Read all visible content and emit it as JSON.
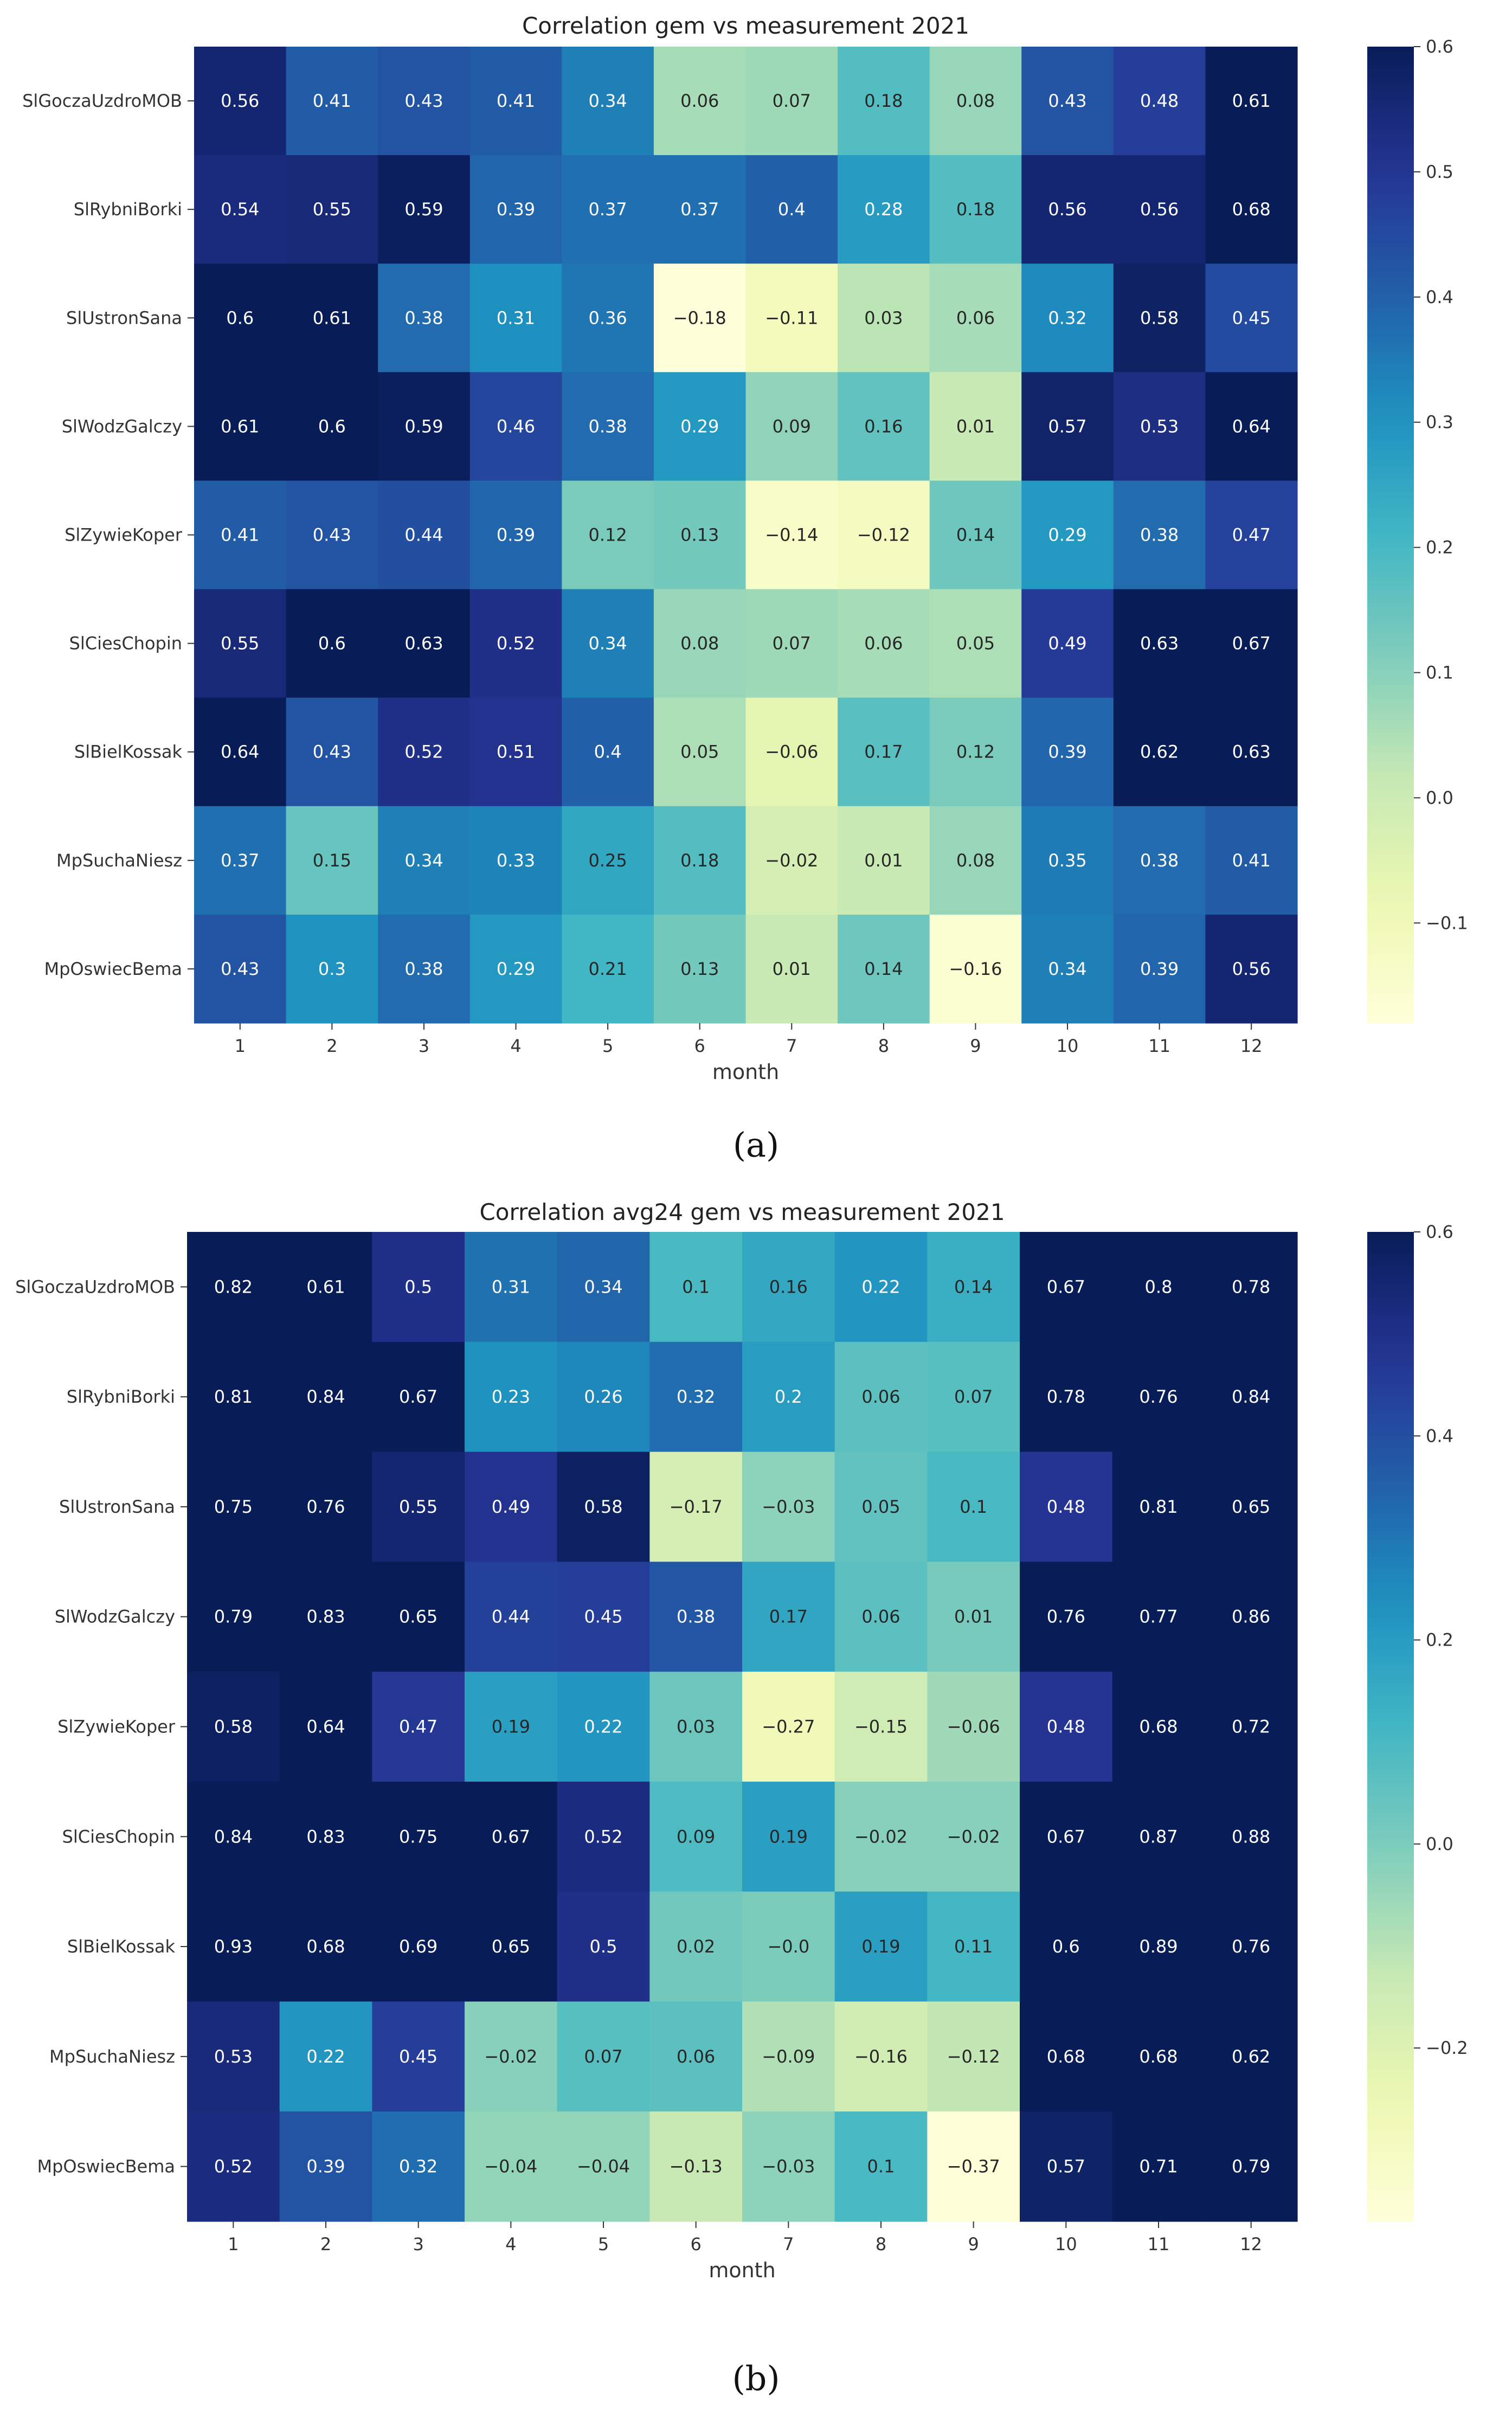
{
  "chart_data": [
    {
      "type": "heatmap",
      "title": "Correlation gem vs measurement 2021",
      "xlabel": "month",
      "ylabel": "",
      "x": [
        "1",
        "2",
        "3",
        "4",
        "5",
        "6",
        "7",
        "8",
        "9",
        "10",
        "11",
        "12"
      ],
      "y": [
        "SlGoczaUzdroMOB",
        "SlRybniBorki",
        "SlUstronSana",
        "SlWodzGalczy",
        "SlZywieKoper",
        "SlCiesChopin",
        "SlBielKossak",
        "MpSuchaNiesz",
        "MpOswiecBema"
      ],
      "cell_labels": [
        [
          "0.56",
          "0.41",
          "0.43",
          "0.41",
          "0.34",
          "0.06",
          "0.07",
          "0.18",
          "0.08",
          "0.43",
          "0.48",
          "0.61"
        ],
        [
          "0.54",
          "0.55",
          "0.59",
          "0.39",
          "0.37",
          "0.37",
          "0.4",
          "0.28",
          "0.18",
          "0.56",
          "0.56",
          "0.68"
        ],
        [
          "0.6",
          "0.61",
          "0.38",
          "0.31",
          "0.36",
          "−0.18",
          "−0.11",
          "0.03",
          "0.06",
          "0.32",
          "0.58",
          "0.45"
        ],
        [
          "0.61",
          "0.6",
          "0.59",
          "0.46",
          "0.38",
          "0.29",
          "0.09",
          "0.16",
          "0.01",
          "0.57",
          "0.53",
          "0.64"
        ],
        [
          "0.41",
          "0.43",
          "0.44",
          "0.39",
          "0.12",
          "0.13",
          "−0.14",
          "−0.12",
          "0.14",
          "0.29",
          "0.38",
          "0.47"
        ],
        [
          "0.55",
          "0.6",
          "0.63",
          "0.52",
          "0.34",
          "0.08",
          "0.07",
          "0.06",
          "0.05",
          "0.49",
          "0.63",
          "0.67"
        ],
        [
          "0.64",
          "0.43",
          "0.52",
          "0.51",
          "0.4",
          "0.05",
          "−0.06",
          "0.17",
          "0.12",
          "0.39",
          "0.62",
          "0.63"
        ],
        [
          "0.37",
          "0.15",
          "0.34",
          "0.33",
          "0.25",
          "0.18",
          "−0.02",
          "0.01",
          "0.08",
          "0.35",
          "0.38",
          "0.41"
        ],
        [
          "0.43",
          "0.3",
          "0.38",
          "0.29",
          "0.21",
          "0.13",
          "0.01",
          "0.14",
          "−0.16",
          "0.34",
          "0.39",
          "0.56"
        ]
      ],
      "values": [
        [
          0.56,
          0.41,
          0.43,
          0.41,
          0.34,
          0.06,
          0.07,
          0.18,
          0.08,
          0.43,
          0.48,
          0.61
        ],
        [
          0.54,
          0.55,
          0.59,
          0.39,
          0.37,
          0.37,
          0.4,
          0.28,
          0.18,
          0.56,
          0.56,
          0.68
        ],
        [
          0.6,
          0.61,
          0.38,
          0.31,
          0.36,
          -0.18,
          -0.11,
          0.03,
          0.06,
          0.32,
          0.58,
          0.45
        ],
        [
          0.61,
          0.6,
          0.59,
          0.46,
          0.38,
          0.29,
          0.09,
          0.16,
          0.01,
          0.57,
          0.53,
          0.64
        ],
        [
          0.41,
          0.43,
          0.44,
          0.39,
          0.12,
          0.13,
          -0.14,
          -0.12,
          0.14,
          0.29,
          0.38,
          0.47
        ],
        [
          0.55,
          0.6,
          0.63,
          0.52,
          0.34,
          0.08,
          0.07,
          0.06,
          0.05,
          0.49,
          0.63,
          0.67
        ],
        [
          0.64,
          0.43,
          0.52,
          0.51,
          0.4,
          0.05,
          -0.06,
          0.17,
          0.12,
          0.39,
          0.62,
          0.63
        ],
        [
          0.37,
          0.15,
          0.34,
          0.33,
          0.25,
          0.18,
          -0.02,
          0.01,
          0.08,
          0.35,
          0.38,
          0.41
        ],
        [
          0.43,
          0.3,
          0.38,
          0.29,
          0.21,
          0.13,
          0.01,
          0.14,
          -0.16,
          0.34,
          0.39,
          0.56
        ]
      ],
      "vmin": -0.18,
      "vmax": 0.6,
      "colorbar_ticks": [
        -0.1,
        0.0,
        0.1,
        0.2,
        0.3,
        0.4,
        0.5,
        0.6
      ],
      "colorbar_tick_labels": [
        "−0.1",
        "0.0",
        "0.1",
        "0.2",
        "0.3",
        "0.4",
        "0.5",
        "0.6"
      ],
      "colormap": "YlGnBu",
      "caption": "(a)"
    },
    {
      "type": "heatmap",
      "title": "Correlation avg24 gem vs measurement 2021",
      "xlabel": "month",
      "ylabel": "",
      "x": [
        "1",
        "2",
        "3",
        "4",
        "5",
        "6",
        "7",
        "8",
        "9",
        "10",
        "11",
        "12"
      ],
      "y": [
        "SlGoczaUzdroMOB",
        "SlRybniBorki",
        "SlUstronSana",
        "SlWodzGalczy",
        "SlZywieKoper",
        "SlCiesChopin",
        "SlBielKossak",
        "MpSuchaNiesz",
        "MpOswiecBema"
      ],
      "cell_labels": [
        [
          "0.82",
          "0.61",
          "0.5",
          "0.31",
          "0.34",
          "0.1",
          "0.16",
          "0.22",
          "0.14",
          "0.67",
          "0.8",
          "0.78"
        ],
        [
          "0.81",
          "0.84",
          "0.67",
          "0.23",
          "0.26",
          "0.32",
          "0.2",
          "0.06",
          "0.07",
          "0.78",
          "0.76",
          "0.84"
        ],
        [
          "0.75",
          "0.76",
          "0.55",
          "0.49",
          "0.58",
          "−0.17",
          "−0.03",
          "0.05",
          "0.1",
          "0.48",
          "0.81",
          "0.65"
        ],
        [
          "0.79",
          "0.83",
          "0.65",
          "0.44",
          "0.45",
          "0.38",
          "0.17",
          "0.06",
          "0.01",
          "0.76",
          "0.77",
          "0.86"
        ],
        [
          "0.58",
          "0.64",
          "0.47",
          "0.19",
          "0.22",
          "0.03",
          "−0.27",
          "−0.15",
          "−0.06",
          "0.48",
          "0.68",
          "0.72"
        ],
        [
          "0.84",
          "0.83",
          "0.75",
          "0.67",
          "0.52",
          "0.09",
          "0.19",
          "−0.02",
          "−0.02",
          "0.67",
          "0.87",
          "0.88"
        ],
        [
          "0.93",
          "0.68",
          "0.69",
          "0.65",
          "0.5",
          "0.02",
          "−0.0",
          "0.19",
          "0.11",
          "0.6",
          "0.89",
          "0.76"
        ],
        [
          "0.53",
          "0.22",
          "0.45",
          "−0.02",
          "0.07",
          "0.06",
          "−0.09",
          "−0.16",
          "−0.12",
          "0.68",
          "0.68",
          "0.62"
        ],
        [
          "0.52",
          "0.39",
          "0.32",
          "−0.04",
          "−0.04",
          "−0.13",
          "−0.03",
          "0.1",
          "−0.37",
          "0.57",
          "0.71",
          "0.79"
        ]
      ],
      "values": [
        [
          0.82,
          0.61,
          0.5,
          0.31,
          0.34,
          0.1,
          0.16,
          0.22,
          0.14,
          0.67,
          0.8,
          0.78
        ],
        [
          0.81,
          0.84,
          0.67,
          0.23,
          0.26,
          0.32,
          0.2,
          0.06,
          0.07,
          0.78,
          0.76,
          0.84
        ],
        [
          0.75,
          0.76,
          0.55,
          0.49,
          0.58,
          -0.17,
          -0.03,
          0.05,
          0.1,
          0.48,
          0.81,
          0.65
        ],
        [
          0.79,
          0.83,
          0.65,
          0.44,
          0.45,
          0.38,
          0.17,
          0.06,
          0.01,
          0.76,
          0.77,
          0.86
        ],
        [
          0.58,
          0.64,
          0.47,
          0.19,
          0.22,
          0.03,
          -0.27,
          -0.15,
          -0.06,
          0.48,
          0.68,
          0.72
        ],
        [
          0.84,
          0.83,
          0.75,
          0.67,
          0.52,
          0.09,
          0.19,
          -0.02,
          -0.02,
          0.67,
          0.87,
          0.88
        ],
        [
          0.93,
          0.68,
          0.69,
          0.65,
          0.5,
          0.02,
          0.0,
          0.19,
          0.11,
          0.6,
          0.89,
          0.76
        ],
        [
          0.53,
          0.22,
          0.45,
          -0.02,
          0.07,
          0.06,
          -0.09,
          -0.16,
          -0.12,
          0.68,
          0.68,
          0.62
        ],
        [
          0.52,
          0.39,
          0.32,
          -0.04,
          -0.04,
          -0.13,
          -0.03,
          0.1,
          -0.37,
          0.57,
          0.71,
          0.79
        ]
      ],
      "vmin": -0.37,
      "vmax": 0.6,
      "colorbar_ticks": [
        -0.2,
        0.0,
        0.2,
        0.4,
        0.6
      ],
      "colorbar_tick_labels": [
        "−0.2",
        "0.0",
        "0.2",
        "0.4",
        "0.6"
      ],
      "colormap": "YlGnBu",
      "caption": "(b)"
    }
  ]
}
